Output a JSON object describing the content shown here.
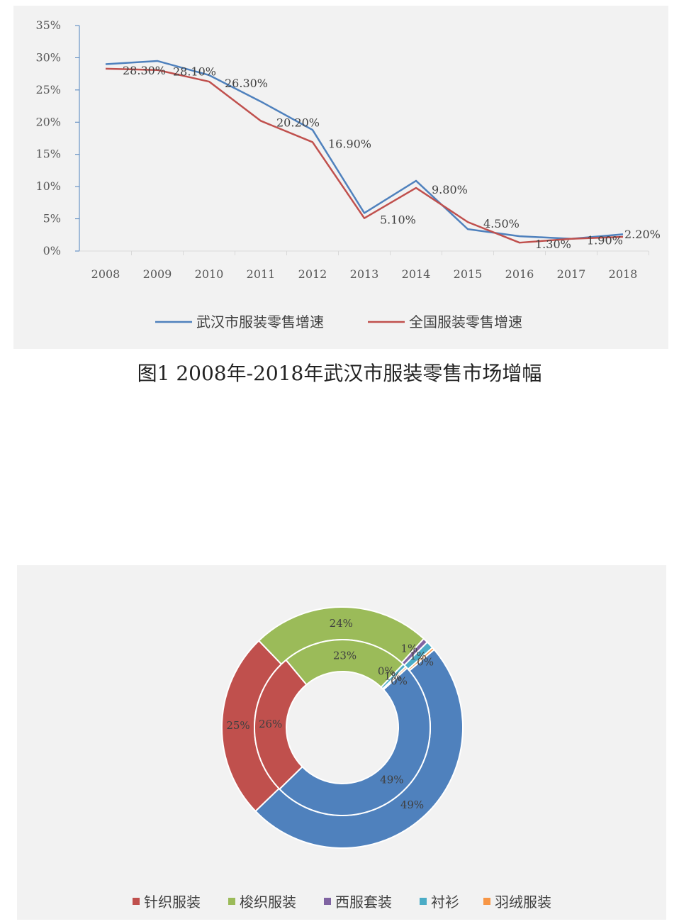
{
  "caption": "图1 2008年-2018年武汉市服装零售市场增幅",
  "chart_data": [
    {
      "type": "line",
      "x": [
        "2008",
        "2009",
        "2010",
        "2011",
        "2012",
        "2013",
        "2014",
        "2015",
        "2016",
        "2017",
        "2018"
      ],
      "y_ticks": [
        "0%",
        "5%",
        "10%",
        "15%",
        "20%",
        "25%",
        "30%",
        "35%"
      ],
      "ylim": [
        0,
        35
      ],
      "series": [
        {
          "name": "武汉市服装零售增速",
          "color": "#4f81bd",
          "values": [
            29.0,
            29.5,
            27.3,
            23.2,
            18.8,
            5.9,
            10.9,
            3.4,
            2.3,
            1.9,
            2.6
          ]
        },
        {
          "name": "全国服装零售增速",
          "color": "#c0504d",
          "values": [
            28.3,
            28.1,
            26.3,
            20.2,
            16.9,
            5.1,
            9.8,
            4.5,
            1.3,
            1.9,
            2.2
          ]
        }
      ],
      "data_labels": [
        "28.30%",
        "28.10%",
        "26.30%",
        "20.20%",
        "16.90%",
        "5.10%",
        "9.80%",
        "4.50%",
        "1.30%",
        "1.90%",
        "2.20%"
      ],
      "legend_position": "bottom",
      "grid": false
    },
    {
      "type": "pie",
      "style": "double-ring-donut",
      "categories": [
        "针织服装",
        "梭织服装",
        "西服套装",
        "衬衫",
        "羽绒服装"
      ],
      "colors": [
        "#c0504d",
        "#9bbb59",
        "#8064a2",
        "#4bacc6",
        "#f79646"
      ],
      "rings": [
        {
          "ring": "outer",
          "values": [
            25,
            24,
            1,
            1,
            0
          ],
          "labels": [
            "25%",
            "24%",
            "1%",
            "1%",
            "0%"
          ]
        },
        {
          "ring": "inner",
          "values": [
            26,
            23,
            0,
            1,
            0
          ],
          "labels": [
            "26%",
            "23%",
            "0%",
            "1%",
            "0%"
          ]
        }
      ],
      "blue_segment": {
        "color": "#4f81bd",
        "outer_value": 49,
        "inner_value": 49,
        "outer_label": "49%",
        "inner_label": "49%"
      },
      "legend_position": "bottom"
    }
  ]
}
